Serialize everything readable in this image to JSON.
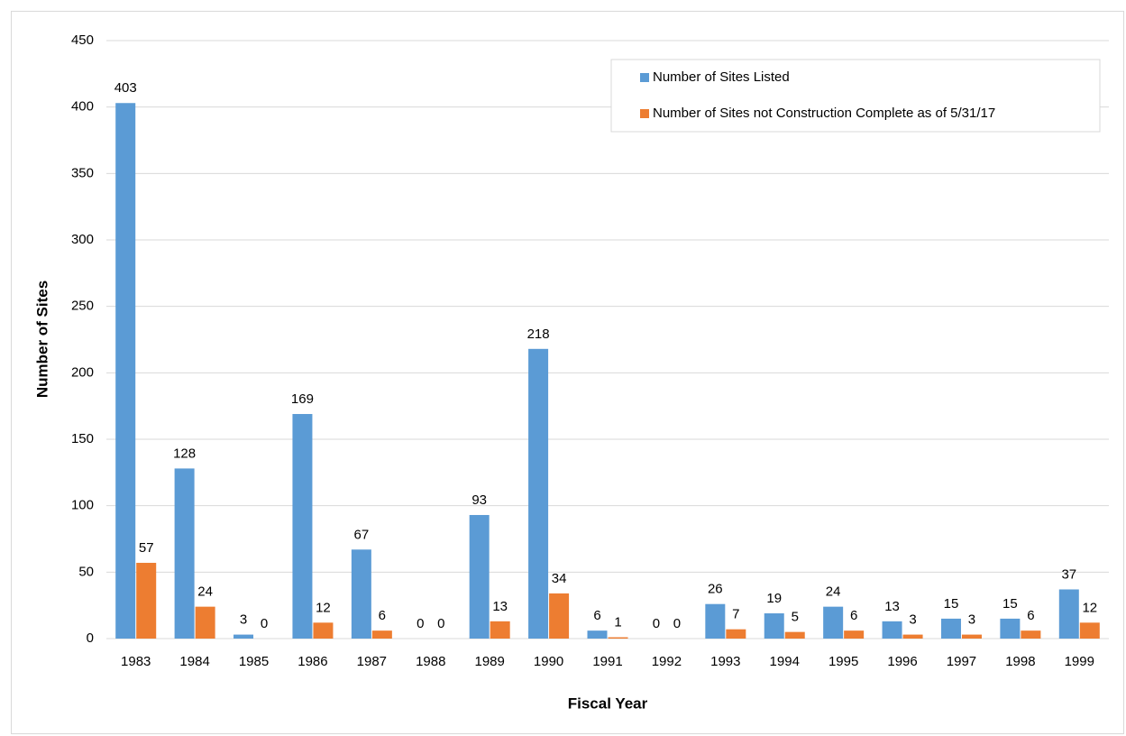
{
  "chart_data": {
    "type": "bar",
    "x_label": "Fiscal Year",
    "y_label": "Number of Sites",
    "categories": [
      "1983",
      "1984",
      "1985",
      "1986",
      "1987",
      "1988",
      "1989",
      "1990",
      "1991",
      "1992",
      "1993",
      "1994",
      "1995",
      "1996",
      "1997",
      "1998",
      "1999"
    ],
    "series": [
      {
        "name": "Number of Sites Listed",
        "color": "#5b9bd5",
        "values": [
          403,
          128,
          3,
          169,
          67,
          0,
          93,
          218,
          6,
          0,
          26,
          19,
          24,
          13,
          15,
          15,
          37
        ]
      },
      {
        "name": "Number of Sites not Construction Complete as of 5/31/17",
        "color": "#ed7d31",
        "values": [
          57,
          24,
          0,
          12,
          6,
          0,
          13,
          34,
          1,
          0,
          7,
          5,
          6,
          3,
          3,
          6,
          12
        ]
      }
    ],
    "ylim": [
      0,
      450
    ],
    "yticks": [
      0,
      50,
      100,
      150,
      200,
      250,
      300,
      350,
      400,
      450
    ],
    "grid": true,
    "legend": "top-right",
    "data_labels": true
  }
}
